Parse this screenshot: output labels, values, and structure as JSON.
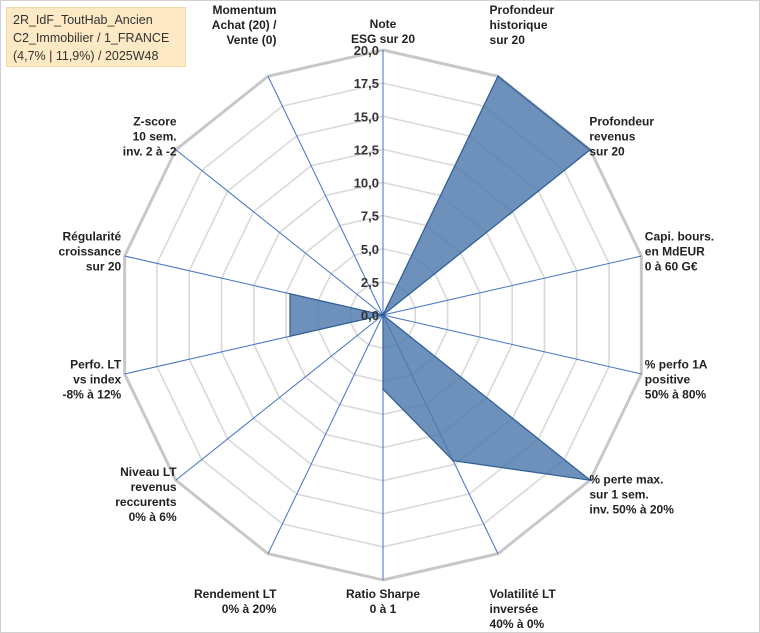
{
  "info_box": {
    "line1": "2R_IdF_ToutHab_Ancien",
    "line2": "C2_Immobilier / 1_FRANCE",
    "line3": "(4,7% | 11,9%) / 2025W48"
  },
  "chart_data": {
    "type": "radar",
    "title": "",
    "rmax": 20,
    "ticks": [
      {
        "value": 0,
        "label": "0,0"
      },
      {
        "value": 2.5,
        "label": "2,5"
      },
      {
        "value": 5,
        "label": "5,0"
      },
      {
        "value": 7.5,
        "label": "7,5"
      },
      {
        "value": 10,
        "label": "10,0"
      },
      {
        "value": 12.5,
        "label": "12,5"
      },
      {
        "value": 15,
        "label": "15,0"
      },
      {
        "value": 17.5,
        "label": "17,5"
      },
      {
        "value": 20,
        "label": "20,0"
      }
    ],
    "grid": true,
    "colors": {
      "fill": "#4e79ad",
      "stroke": "#2f5f96",
      "grid": "#d9d9d9",
      "spoke": "#4472c4"
    },
    "axes": [
      {
        "label": [
          "Note",
          "ESG sur 20"
        ],
        "value": 0
      },
      {
        "label": [
          "Profondeur",
          "historique",
          "sur 20"
        ],
        "value": 20
      },
      {
        "label": [
          "Profondeur",
          "revenus",
          "sur 20"
        ],
        "value": 20
      },
      {
        "label": [
          "Capi. bours.",
          "en MdEUR",
          "0 à 60 G€"
        ],
        "value": 0
      },
      {
        "label": [
          "% perfo 1A",
          "positive",
          "50% à 80%"
        ],
        "value": 0
      },
      {
        "label": [
          "% perte max.",
          "sur 1 sem.",
          "inv. 50% à 20%"
        ],
        "value": 20
      },
      {
        "label": [
          "Volatilité LT",
          "inversée",
          "40% à 0%"
        ],
        "value": 12.2
      },
      {
        "label": [
          "Ratio Sharpe",
          "0 à 1"
        ],
        "value": 5.6
      },
      {
        "label": [
          "Rendement LT",
          "0% à 20%"
        ],
        "value": 0
      },
      {
        "label": [
          "Niveau LT",
          "revenus",
          "reccurents",
          "0% à 6%"
        ],
        "value": 0
      },
      {
        "label": [
          "Perfo. LT",
          "vs index",
          "-8% à 12%"
        ],
        "value": 7.2
      },
      {
        "label": [
          "Régularité",
          "croissance",
          "sur 20"
        ],
        "value": 7.2
      },
      {
        "label": [
          "Z-score",
          "10 sem.",
          "inv. 2 à -2"
        ],
        "value": 0
      },
      {
        "label": [
          "Momentum",
          "Achat (20) /",
          "Vente (0)"
        ],
        "value": 0
      }
    ]
  }
}
